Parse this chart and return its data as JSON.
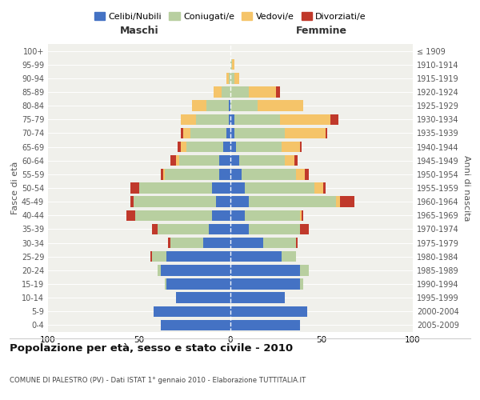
{
  "age_groups": [
    "0-4",
    "5-9",
    "10-14",
    "15-19",
    "20-24",
    "25-29",
    "30-34",
    "35-39",
    "40-44",
    "45-49",
    "50-54",
    "55-59",
    "60-64",
    "65-69",
    "70-74",
    "75-79",
    "80-84",
    "85-89",
    "90-94",
    "95-99",
    "100+"
  ],
  "birth_years": [
    "2005-2009",
    "2000-2004",
    "1995-1999",
    "1990-1994",
    "1985-1989",
    "1980-1984",
    "1975-1979",
    "1970-1974",
    "1965-1969",
    "1960-1964",
    "1955-1959",
    "1950-1954",
    "1945-1949",
    "1940-1944",
    "1935-1939",
    "1930-1934",
    "1925-1929",
    "1920-1924",
    "1915-1919",
    "1910-1914",
    "≤ 1909"
  ],
  "colors": {
    "celibi": "#4472c4",
    "coniugati": "#b8cfa0",
    "vedovi": "#f5c469",
    "divorziati": "#c0392b"
  },
  "maschi": {
    "celibi": [
      38,
      42,
      30,
      35,
      38,
      35,
      15,
      12,
      10,
      8,
      10,
      6,
      6,
      4,
      2,
      1,
      1,
      0,
      0,
      0,
      0
    ],
    "coniugati": [
      0,
      0,
      0,
      1,
      2,
      8,
      18,
      28,
      42,
      45,
      40,
      30,
      22,
      20,
      20,
      18,
      12,
      5,
      1,
      0,
      0
    ],
    "vedovi": [
      0,
      0,
      0,
      0,
      0,
      0,
      0,
      0,
      0,
      0,
      0,
      1,
      2,
      3,
      4,
      8,
      8,
      4,
      1,
      0,
      0
    ],
    "divorziati": [
      0,
      0,
      0,
      0,
      0,
      1,
      1,
      3,
      5,
      2,
      5,
      1,
      3,
      2,
      1,
      0,
      0,
      0,
      0,
      0,
      0
    ]
  },
  "femmine": {
    "celibi": [
      38,
      42,
      30,
      38,
      38,
      28,
      18,
      10,
      8,
      10,
      8,
      6,
      5,
      3,
      2,
      2,
      0,
      0,
      0,
      0,
      0
    ],
    "coniugati": [
      0,
      0,
      0,
      2,
      5,
      8,
      18,
      28,
      30,
      48,
      38,
      30,
      25,
      25,
      28,
      25,
      15,
      10,
      2,
      1,
      0
    ],
    "vedovi": [
      0,
      0,
      0,
      0,
      0,
      0,
      0,
      0,
      1,
      2,
      5,
      5,
      5,
      10,
      22,
      28,
      25,
      15,
      3,
      1,
      0
    ],
    "divorziati": [
      0,
      0,
      0,
      0,
      0,
      0,
      1,
      5,
      1,
      8,
      1,
      2,
      2,
      1,
      1,
      4,
      0,
      2,
      0,
      0,
      0
    ]
  },
  "xlim": 100,
  "title": "Popolazione per età, sesso e stato civile - 2010",
  "subtitle": "COMUNE DI PALESTRO (PV) - Dati ISTAT 1° gennaio 2010 - Elaborazione TUTTITALIA.IT",
  "ylabel_left": "Fasce di età",
  "ylabel_right": "Anni di nascita",
  "xlabel_left": "Maschi",
  "xlabel_right": "Femmine",
  "bg_color": "#f0f0eb",
  "legend_labels": [
    "Celibi/Nubili",
    "Coniugati/e",
    "Vedovi/e",
    "Divorziati/e"
  ]
}
